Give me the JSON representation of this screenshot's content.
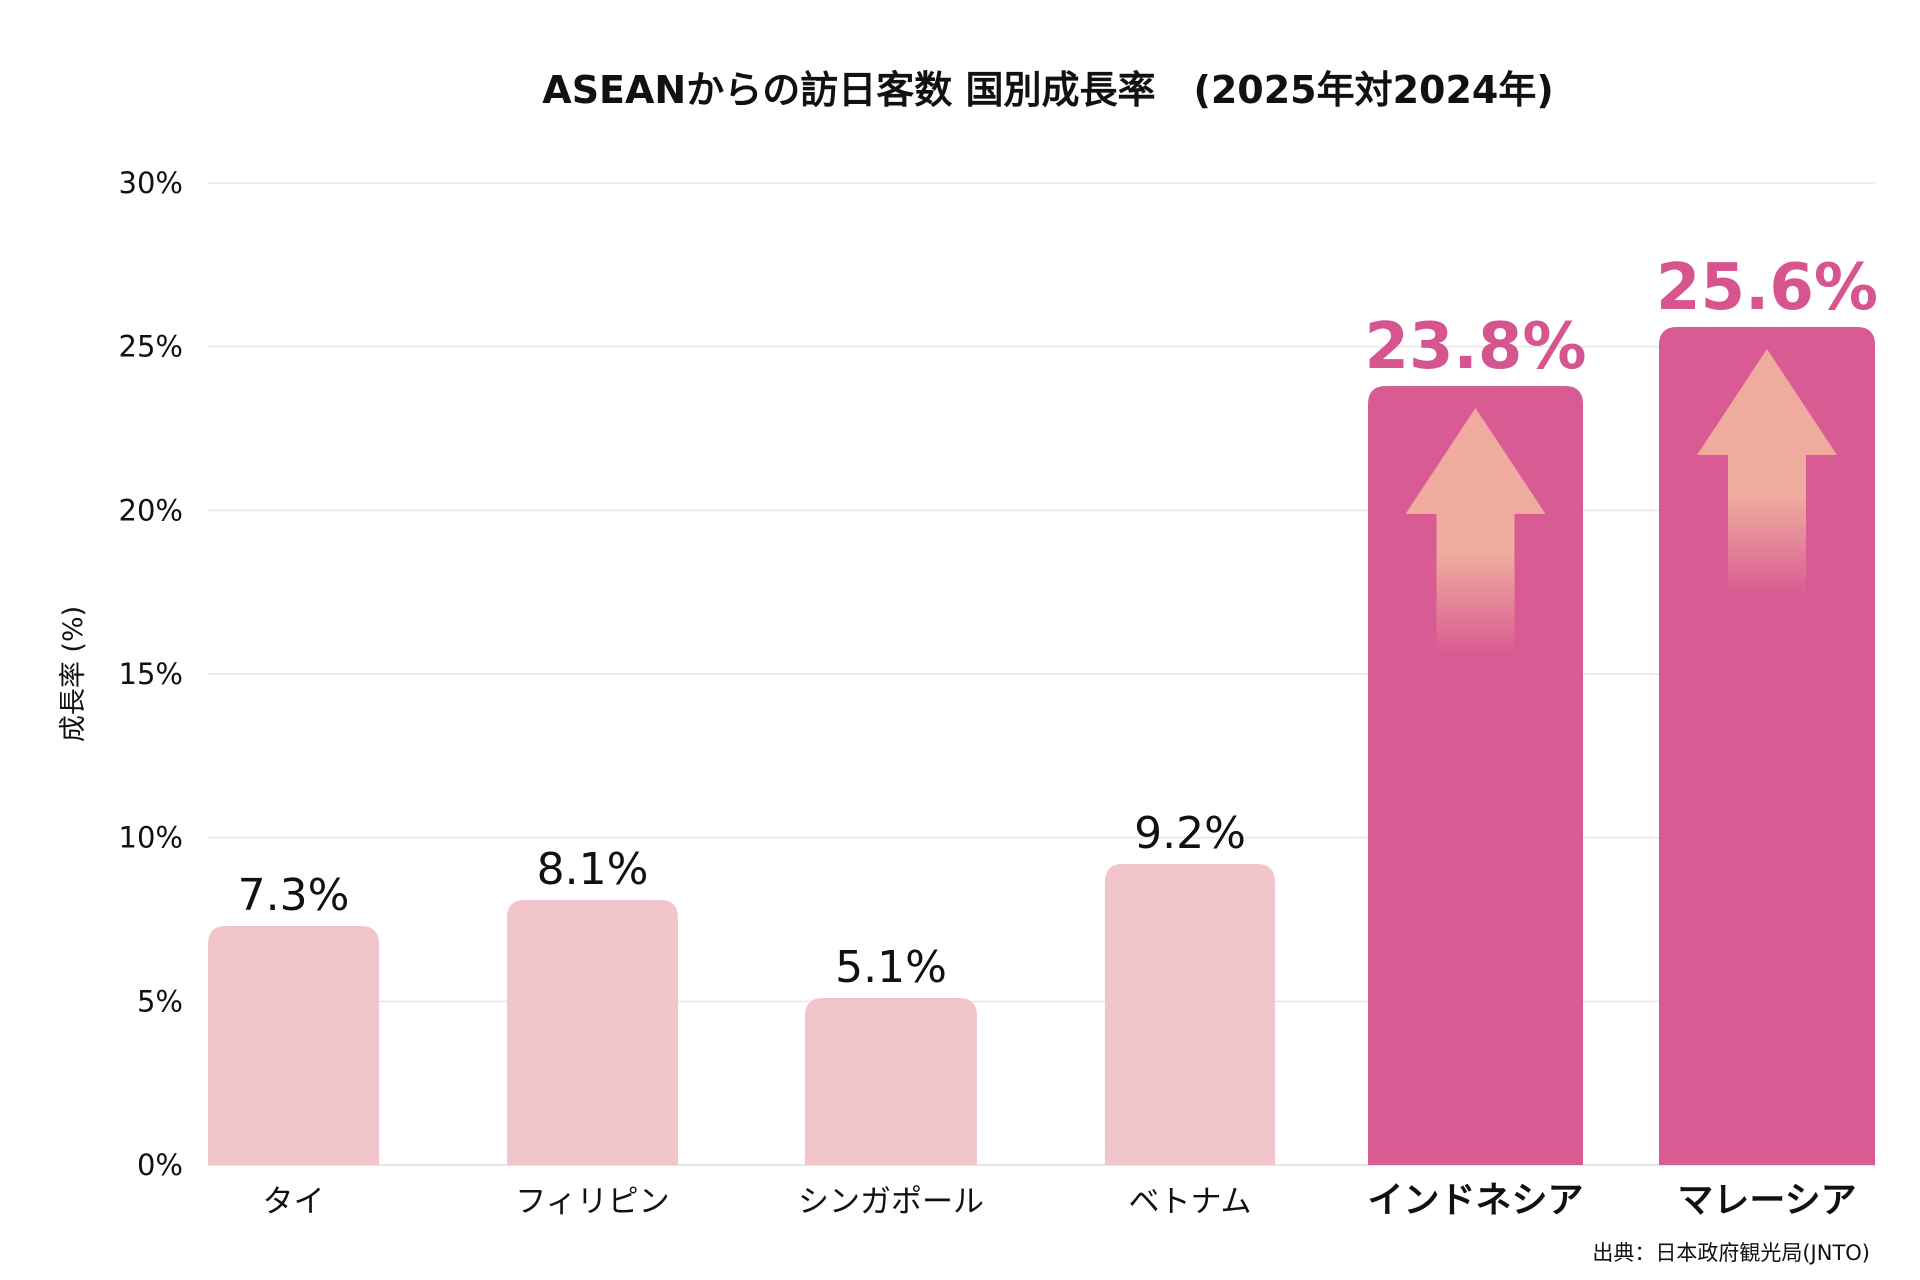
{
  "chart_data": {
    "type": "bar",
    "title": "ASEANからの訪日客数 国別成長率　(2025年対2024年)",
    "xlabel": "",
    "ylabel": "成長率 (%)",
    "ylim": [
      0,
      30
    ],
    "yticks": [
      "0%",
      "5%",
      "10%",
      "15%",
      "20%",
      "25%",
      "30%"
    ],
    "ytick_values": [
      0,
      5,
      10,
      15,
      20,
      25,
      30
    ],
    "grid": true,
    "categories": [
      "タイ",
      "フィリピン",
      "シンガポール",
      "ベトナム",
      "インドネシア",
      "マレーシア"
    ],
    "values": [
      7.3,
      8.1,
      5.1,
      9.2,
      23.8,
      25.6
    ],
    "data_labels": [
      "7.3%",
      "8.1%",
      "5.1%",
      "9.2%",
      "23.8%",
      "25.6%"
    ],
    "highlighted": [
      false,
      false,
      false,
      false,
      true,
      true
    ],
    "source": "出典：日本政府観光局(JNTO)",
    "colors": {
      "bar": "#f2c5ca",
      "highlight_bar": "#d95b93",
      "highlight_label": "#d6558f",
      "arrow": "#eeab9e",
      "grid": "#e6e6e6",
      "text": "#111111"
    }
  }
}
